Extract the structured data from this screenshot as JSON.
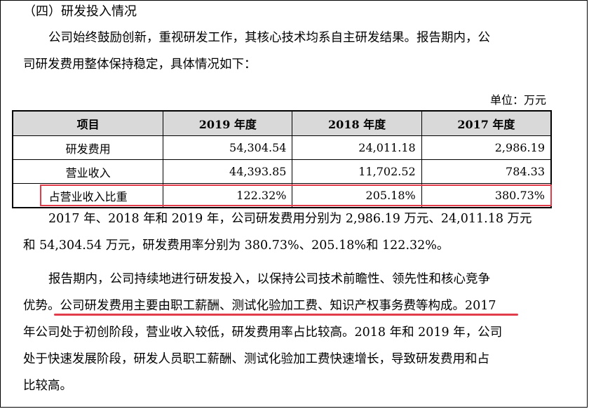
{
  "heading": "（四）研发投入情况",
  "intro": {
    "line1": "公司始终鼓励创新，重视研发工作，其核心技术均系自主研发结果。报告期内，公",
    "line2": "司研发费用整体保持稳定，具体情况如下："
  },
  "unit_label": "单位：万元",
  "table": {
    "headers": [
      "项目",
      "2019 年度",
      "2018 年度",
      "2017 年度"
    ],
    "rows": [
      [
        "研发费用",
        "54,304.54",
        "24,011.18",
        "2,986.19"
      ],
      [
        "营业收入",
        "44,393.85",
        "11,702.52",
        "784.33"
      ],
      [
        "占营业收入比重",
        "122.32%",
        "205.18%",
        "380.73%"
      ]
    ]
  },
  "summary": {
    "line1": "2017 年、2018 年和 2019 年，公司研发费用分别为 2,986.19 万元、24,011.18 万元",
    "line2": "和 54,304.54 万元，研发费用率分别为 380.73%、205.18%和 122.32%。"
  },
  "detail": {
    "line1": "报告期内，公司持续地进行研发投入，以保持公司技术前瞻性、领先性和核心竞争",
    "line2_a": "优势。",
    "line2_b": "公司研发费用主要由职工薪酬、测试化验加工费、知识产权事务费等构成。",
    "line2_c": "2017",
    "line3": "年公司处于初创阶段，营业收入较低，研发费用率占比较高。2018 年和 2019 年，公司",
    "line4": "处于快速发展阶段，研发人员职工薪酬、测试化验加工费快速增长，导致研发费用和占",
    "line5": "比较高。"
  },
  "annotation_color": "#e23b4a"
}
